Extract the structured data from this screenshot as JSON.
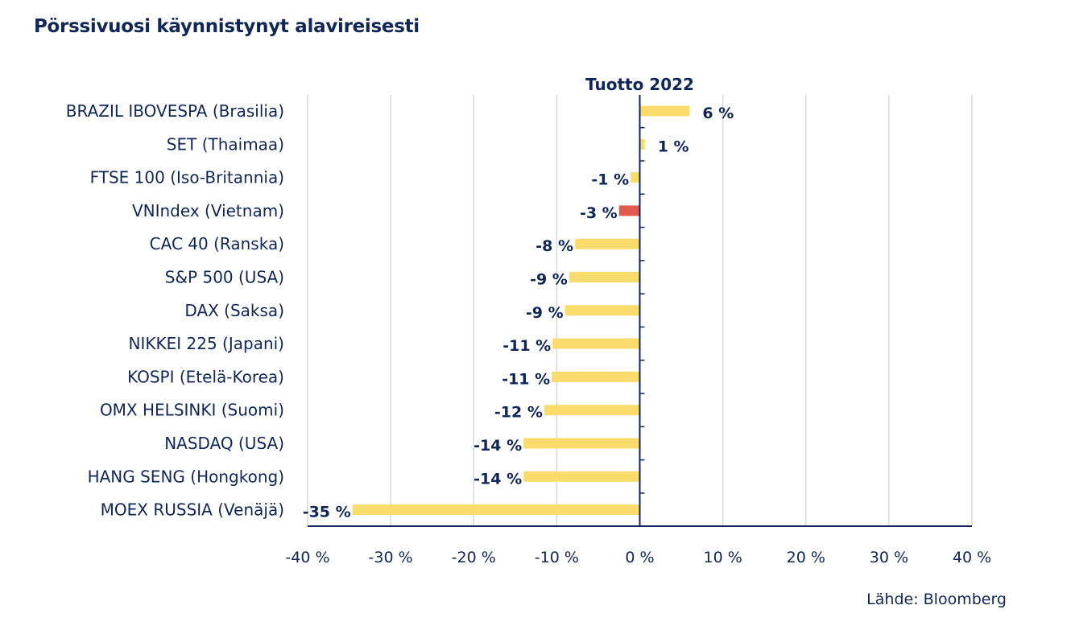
{
  "title": "Pörssivuosi käynnistynyt alavireisesti",
  "source": "Lähde: Bloomberg",
  "chart_data": {
    "type": "bar",
    "orientation": "horizontal",
    "series_label": "Tuotto 2022",
    "categories": [
      "BRAZIL IBOVESPA (Brasilia)",
      "SET (Thaimaa)",
      "FTSE 100 (Iso-Britannia)",
      "VNIndex (Vietnam)",
      "CAC 40 (Ranska)",
      "S&P 500 (USA)",
      "DAX (Saksa)",
      "NIKKEI 225 (Japani)",
      "KOSPI (Etelä-Korea)",
      "OMX HELSINKI (Suomi)",
      "NASDAQ (USA)",
      "HANG SENG (Hongkong)",
      "MOEX RUSSIA (Venäjä)"
    ],
    "values": [
      6.0,
      0.6,
      -1.1,
      -2.5,
      -7.8,
      -8.5,
      -9.0,
      -10.5,
      -10.6,
      -11.5,
      -14.0,
      -14.0,
      -34.6
    ],
    "value_labels": [
      "6 %",
      "1 %",
      "-1 %",
      "-3 %",
      "-8 %",
      "-9 %",
      "-9 %",
      "-11 %",
      "-11 %",
      "-12 %",
      "-14 %",
      "-14 %",
      "-35 %"
    ],
    "highlight_index": 3,
    "xlim": [
      -40,
      40
    ],
    "xticks": [
      -40,
      -30,
      -20,
      -10,
      0,
      10,
      20,
      30,
      40
    ],
    "xtick_labels": [
      "-40 %",
      "-30 %",
      "-20 %",
      "-10 %",
      "0 %",
      "10 %",
      "20 %",
      "30 %",
      "40 %"
    ],
    "grid": true,
    "colors": {
      "bar": "#f9dc6c",
      "highlight": "#e05a4f",
      "text": "#0f2657",
      "grid": "#d9d9d9"
    }
  }
}
